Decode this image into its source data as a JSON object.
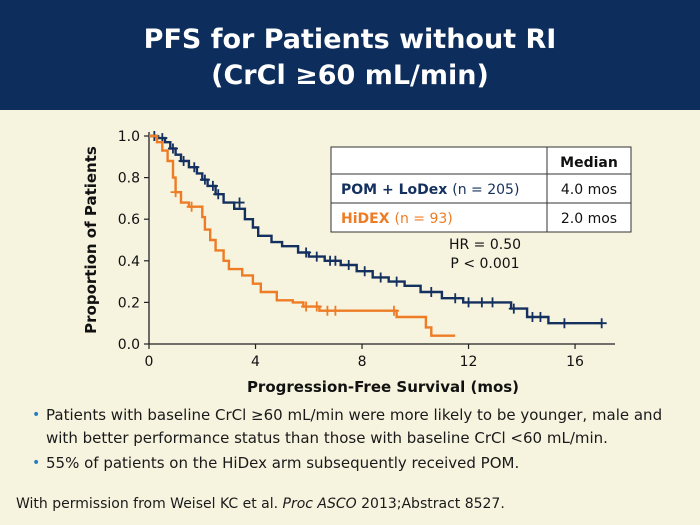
{
  "header": {
    "title_line1": "PFS for Patients without RI",
    "title_line2": "(CrCl ≥60 mL/min)"
  },
  "chart_data": {
    "type": "line",
    "subtype": "kaplan-meier",
    "xlabel": "Progression-Free Survival (mos)",
    "ylabel": "Proportion of Patients",
    "xlim": [
      0,
      17.5
    ],
    "ylim": [
      0,
      1.0
    ],
    "x_ticks": [
      0,
      4,
      8,
      12,
      16
    ],
    "y_ticks": [
      0.0,
      0.2,
      0.4,
      0.6,
      0.8,
      1.0
    ],
    "x_tick_labels": [
      "0",
      "4",
      "8",
      "12",
      "16"
    ],
    "y_tick_labels": [
      "0.0",
      "0.2",
      "0.4",
      "0.6",
      "0.8",
      "1.0"
    ],
    "series": [
      {
        "name": "POM + LoDex",
        "n_label": "(n = 205)",
        "median": "4.0 mos",
        "color": "#14305e",
        "points": [
          [
            0,
            1.0
          ],
          [
            0.3,
            1.0
          ],
          [
            0.3,
            0.99
          ],
          [
            0.6,
            0.99
          ],
          [
            0.6,
            0.97
          ],
          [
            0.8,
            0.97
          ],
          [
            0.8,
            0.94
          ],
          [
            1.0,
            0.94
          ],
          [
            1.0,
            0.91
          ],
          [
            1.2,
            0.91
          ],
          [
            1.2,
            0.88
          ],
          [
            1.5,
            0.88
          ],
          [
            1.5,
            0.85
          ],
          [
            1.8,
            0.85
          ],
          [
            1.8,
            0.82
          ],
          [
            2.0,
            0.82
          ],
          [
            2.0,
            0.79
          ],
          [
            2.2,
            0.79
          ],
          [
            2.2,
            0.76
          ],
          [
            2.5,
            0.76
          ],
          [
            2.5,
            0.72
          ],
          [
            2.8,
            0.72
          ],
          [
            2.8,
            0.68
          ],
          [
            3.2,
            0.68
          ],
          [
            3.2,
            0.65
          ],
          [
            3.6,
            0.65
          ],
          [
            3.6,
            0.6
          ],
          [
            3.9,
            0.6
          ],
          [
            3.9,
            0.56
          ],
          [
            4.1,
            0.56
          ],
          [
            4.1,
            0.52
          ],
          [
            4.6,
            0.52
          ],
          [
            4.6,
            0.49
          ],
          [
            5.0,
            0.49
          ],
          [
            5.0,
            0.47
          ],
          [
            5.6,
            0.47
          ],
          [
            5.6,
            0.44
          ],
          [
            6.0,
            0.44
          ],
          [
            6.0,
            0.42
          ],
          [
            6.6,
            0.42
          ],
          [
            6.6,
            0.4
          ],
          [
            7.2,
            0.4
          ],
          [
            7.2,
            0.38
          ],
          [
            7.8,
            0.38
          ],
          [
            7.8,
            0.35
          ],
          [
            8.4,
            0.35
          ],
          [
            8.4,
            0.32
          ],
          [
            9.0,
            0.32
          ],
          [
            9.0,
            0.3
          ],
          [
            9.6,
            0.3
          ],
          [
            9.6,
            0.28
          ],
          [
            10.2,
            0.28
          ],
          [
            10.2,
            0.25
          ],
          [
            11.0,
            0.25
          ],
          [
            11.0,
            0.22
          ],
          [
            11.8,
            0.22
          ],
          [
            11.8,
            0.2
          ],
          [
            13.6,
            0.2
          ],
          [
            13.6,
            0.17
          ],
          [
            14.2,
            0.17
          ],
          [
            14.2,
            0.13
          ],
          [
            15.0,
            0.13
          ],
          [
            15.0,
            0.1
          ],
          [
            16.4,
            0.1
          ],
          [
            17.0,
            0.1
          ]
        ],
        "censored": [
          [
            0.2,
            1.0
          ],
          [
            0.5,
            0.99
          ],
          [
            0.9,
            0.94
          ],
          [
            1.3,
            0.88
          ],
          [
            1.7,
            0.85
          ],
          [
            2.1,
            0.79
          ],
          [
            2.4,
            0.76
          ],
          [
            2.6,
            0.72
          ],
          [
            3.4,
            0.68
          ],
          [
            5.9,
            0.44
          ],
          [
            6.3,
            0.42
          ],
          [
            6.8,
            0.4
          ],
          [
            7.0,
            0.4
          ],
          [
            7.5,
            0.38
          ],
          [
            8.1,
            0.35
          ],
          [
            8.7,
            0.32
          ],
          [
            9.3,
            0.3
          ],
          [
            10.6,
            0.25
          ],
          [
            11.5,
            0.22
          ],
          [
            12.0,
            0.2
          ],
          [
            12.5,
            0.2
          ],
          [
            12.9,
            0.2
          ],
          [
            13.7,
            0.17
          ],
          [
            14.4,
            0.13
          ],
          [
            14.7,
            0.13
          ],
          [
            15.6,
            0.1
          ],
          [
            17.0,
            0.1
          ]
        ]
      },
      {
        "name": "HiDEX",
        "n_label": "(n = 93)",
        "median": "2.0 mos",
        "color": "#ee7c24",
        "points": [
          [
            0,
            1.0
          ],
          [
            0.3,
            1.0
          ],
          [
            0.3,
            0.97
          ],
          [
            0.5,
            0.97
          ],
          [
            0.5,
            0.93
          ],
          [
            0.7,
            0.93
          ],
          [
            0.7,
            0.88
          ],
          [
            0.9,
            0.88
          ],
          [
            0.9,
            0.8
          ],
          [
            1.0,
            0.8
          ],
          [
            1.0,
            0.73
          ],
          [
            1.2,
            0.73
          ],
          [
            1.2,
            0.68
          ],
          [
            1.5,
            0.68
          ],
          [
            1.5,
            0.66
          ],
          [
            2.0,
            0.66
          ],
          [
            2.0,
            0.61
          ],
          [
            2.1,
            0.61
          ],
          [
            2.1,
            0.55
          ],
          [
            2.3,
            0.55
          ],
          [
            2.3,
            0.5
          ],
          [
            2.5,
            0.5
          ],
          [
            2.5,
            0.45
          ],
          [
            2.8,
            0.45
          ],
          [
            2.8,
            0.4
          ],
          [
            3.0,
            0.4
          ],
          [
            3.0,
            0.36
          ],
          [
            3.5,
            0.36
          ],
          [
            3.5,
            0.33
          ],
          [
            3.9,
            0.33
          ],
          [
            3.9,
            0.29
          ],
          [
            4.2,
            0.29
          ],
          [
            4.2,
            0.25
          ],
          [
            4.8,
            0.25
          ],
          [
            4.8,
            0.21
          ],
          [
            5.4,
            0.21
          ],
          [
            5.4,
            0.2
          ],
          [
            5.8,
            0.2
          ],
          [
            5.8,
            0.18
          ],
          [
            6.4,
            0.18
          ],
          [
            6.4,
            0.16
          ],
          [
            9.3,
            0.16
          ],
          [
            9.3,
            0.13
          ],
          [
            10.4,
            0.13
          ],
          [
            10.4,
            0.08
          ],
          [
            10.6,
            0.08
          ],
          [
            10.6,
            0.04
          ],
          [
            11.2,
            0.04
          ],
          [
            11.5,
            0.04
          ]
        ],
        "censored": [
          [
            1.0,
            0.73
          ],
          [
            1.6,
            0.66
          ],
          [
            5.9,
            0.18
          ],
          [
            6.3,
            0.18
          ],
          [
            6.7,
            0.16
          ],
          [
            7.0,
            0.16
          ],
          [
            9.2,
            0.16
          ]
        ]
      }
    ],
    "legend_table": {
      "header": "Median",
      "rows": [
        {
          "arm": "POM + LoDex",
          "n": "(n = 205)",
          "median": "4.0 mos"
        },
        {
          "arm": "HiDEX",
          "n": "(n = 93)",
          "median": "2.0 mos"
        }
      ]
    },
    "annotations": [
      "HR = 0.50",
      "P < 0.001"
    ]
  },
  "bullets": [
    "Patients with baseline CrCl ≥60 mL/min were more likely to be younger, male and with better performance status than those with baseline CrCl <60 mL/min.",
    "55% of patients on the HiDex arm subsequently received POM."
  ],
  "footer": {
    "prefix": "With permission from Weisel KC et al. ",
    "journal": "Proc ASCO",
    "suffix": " 2013;Abstract 8527."
  }
}
